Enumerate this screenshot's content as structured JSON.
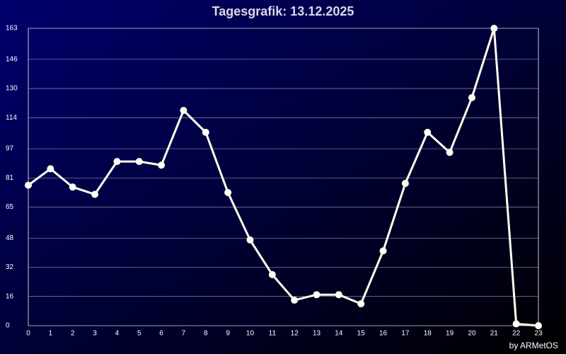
{
  "chart_data": {
    "type": "line",
    "title": "Tagesgrafik: 13.12.2025",
    "credit": "by ARMetOS",
    "x": [
      0,
      1,
      2,
      3,
      4,
      5,
      6,
      7,
      8,
      9,
      10,
      11,
      12,
      13,
      14,
      15,
      16,
      17,
      18,
      19,
      20,
      21,
      22,
      23
    ],
    "series": [
      {
        "color": "#fffff0",
        "values": [
          77,
          86,
          76,
          72,
          90,
          90,
          88,
          118,
          106,
          73,
          47,
          28,
          14,
          17,
          17,
          12,
          41,
          78,
          106,
          95,
          125,
          163,
          1,
          0
        ]
      }
    ],
    "xlim": [
      0,
      23
    ],
    "xticks": [
      0,
      1,
      2,
      3,
      4,
      5,
      6,
      7,
      8,
      9,
      10,
      11,
      12,
      13,
      14,
      15,
      16,
      17,
      18,
      19,
      20,
      21,
      22,
      23
    ],
    "ylim": [
      0,
      163
    ],
    "yticks": [
      0,
      16,
      32,
      48,
      65,
      81,
      97,
      114,
      130,
      146,
      163
    ],
    "grid": true
  }
}
